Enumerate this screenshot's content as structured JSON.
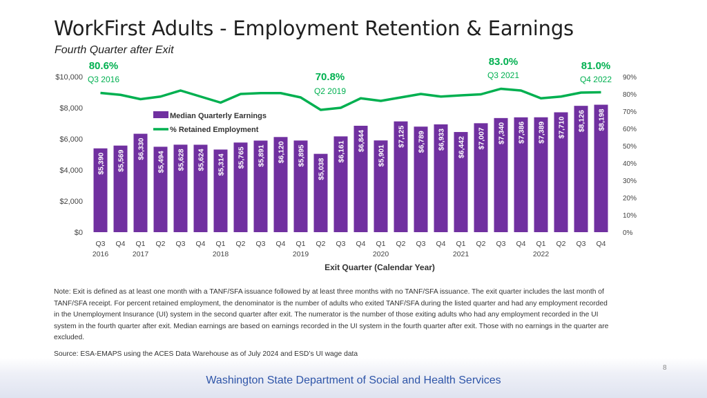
{
  "title": "WorkFirst Adults - Employment Retention & Earnings",
  "subtitle": "Fourth Quarter after Exit",
  "chart_data": {
    "type": "bar+line",
    "categories": [
      "Q3",
      "Q4",
      "Q1",
      "Q2",
      "Q3",
      "Q4",
      "Q1",
      "Q2",
      "Q3",
      "Q4",
      "Q1",
      "Q2",
      "Q3",
      "Q4",
      "Q1",
      "Q2",
      "Q3",
      "Q4",
      "Q1",
      "Q2",
      "Q3",
      "Q4",
      "Q1",
      "Q2",
      "Q3",
      "Q4"
    ],
    "category_years": [
      "2016",
      "",
      "2017",
      "",
      "",
      "",
      "2018",
      "",
      "",
      "",
      "2019",
      "",
      "",
      "",
      "2020",
      "",
      "",
      "",
      "2021",
      "",
      "",
      "",
      "2022",
      "",
      "",
      ""
    ],
    "series": [
      {
        "name": "Median Quarterly Earnings",
        "kind": "bar",
        "axis": "left",
        "values": [
          5390,
          5569,
          6330,
          5494,
          5628,
          5624,
          5314,
          5765,
          5891,
          6120,
          5895,
          5038,
          6161,
          6844,
          5901,
          7125,
          6789,
          6933,
          6442,
          7007,
          7340,
          7386,
          7389,
          7710,
          8126,
          8198
        ],
        "labels": [
          "$5,390",
          "$5,569",
          "$6,330",
          "$5,494",
          "$5,628",
          "$5,624",
          "$5,314",
          "$5,765",
          "$5,891",
          "$6,120",
          "$5,895",
          "$5,038",
          "$6,161",
          "$6,844",
          "$5,901",
          "$7,125",
          "$6,789",
          "$6,933",
          "$6,442",
          "$7,007",
          "$7,340",
          "$7,386",
          "$7,389",
          "$7,710",
          "$8,126",
          "$8,198"
        ]
      },
      {
        "name": "% Retained Employment",
        "kind": "line",
        "axis": "right",
        "values": [
          80.6,
          79.5,
          77.0,
          78.5,
          82.0,
          78.5,
          75.0,
          80.0,
          80.5,
          80.5,
          78.0,
          70.8,
          72.0,
          77.5,
          76.0,
          78.0,
          80.0,
          78.5,
          79.2,
          79.8,
          83.0,
          82.0,
          77.5,
          78.5,
          80.8,
          81.0
        ]
      }
    ],
    "left_axis": {
      "min": 0,
      "max": 10000,
      "ticks": [
        0,
        2000,
        4000,
        6000,
        8000,
        10000
      ],
      "tick_labels": [
        "$0",
        "$2,000",
        "$4,000",
        "$6,000",
        "$8,000",
        "$10,000"
      ]
    },
    "right_axis": {
      "min": 0,
      "max": 90,
      "ticks": [
        0,
        10,
        20,
        30,
        40,
        50,
        60,
        70,
        80,
        90
      ],
      "tick_labels": [
        "0%",
        "10%",
        "20%",
        "30%",
        "40%",
        "50%",
        "60%",
        "70%",
        "80%",
        "90%"
      ]
    },
    "xlabel": "Exit Quarter (Calendar Year)",
    "annotations": [
      {
        "index": 0,
        "value": "80.6%",
        "label": "Q3 2016"
      },
      {
        "index": 11,
        "value": "70.8%",
        "label": "Q2 2019"
      },
      {
        "index": 20,
        "value": "83.0%",
        "label": "Q3 2021"
      },
      {
        "index": 25,
        "value": "81.0%",
        "label": "Q4 2022"
      }
    ],
    "legend_position": "top-left inside plot",
    "colors": {
      "bar": "#7030a0",
      "line": "#00b050",
      "annotation": "#00b050"
    }
  },
  "note": "Note: Exit is defined as at least one month with a TANF/SFA issuance followed by at least three months with no TANF/SFA issuance. The exit quarter includes the last month of TANF/SFA receipt. For percent retained employment, the denominator is the number of adults who exited TANF/SFA during the listed quarter and had any employment recorded in the Unemployment Insurance (UI) system in the second quarter after exit. The numerator is the number of those exiting adults who had any employment recorded in the UI system in the fourth quarter after exit. Median earnings are based on earnings recorded in the UI system in the fourth quarter after exit. Those with no earnings in the quarter are excluded.",
  "source": "Source: ESA-EMAPS using the ACES Data Warehouse as of July 2024 and ESD’s UI wage data",
  "page_number": "8",
  "footer": "Washington State Department of Social and Health Services"
}
